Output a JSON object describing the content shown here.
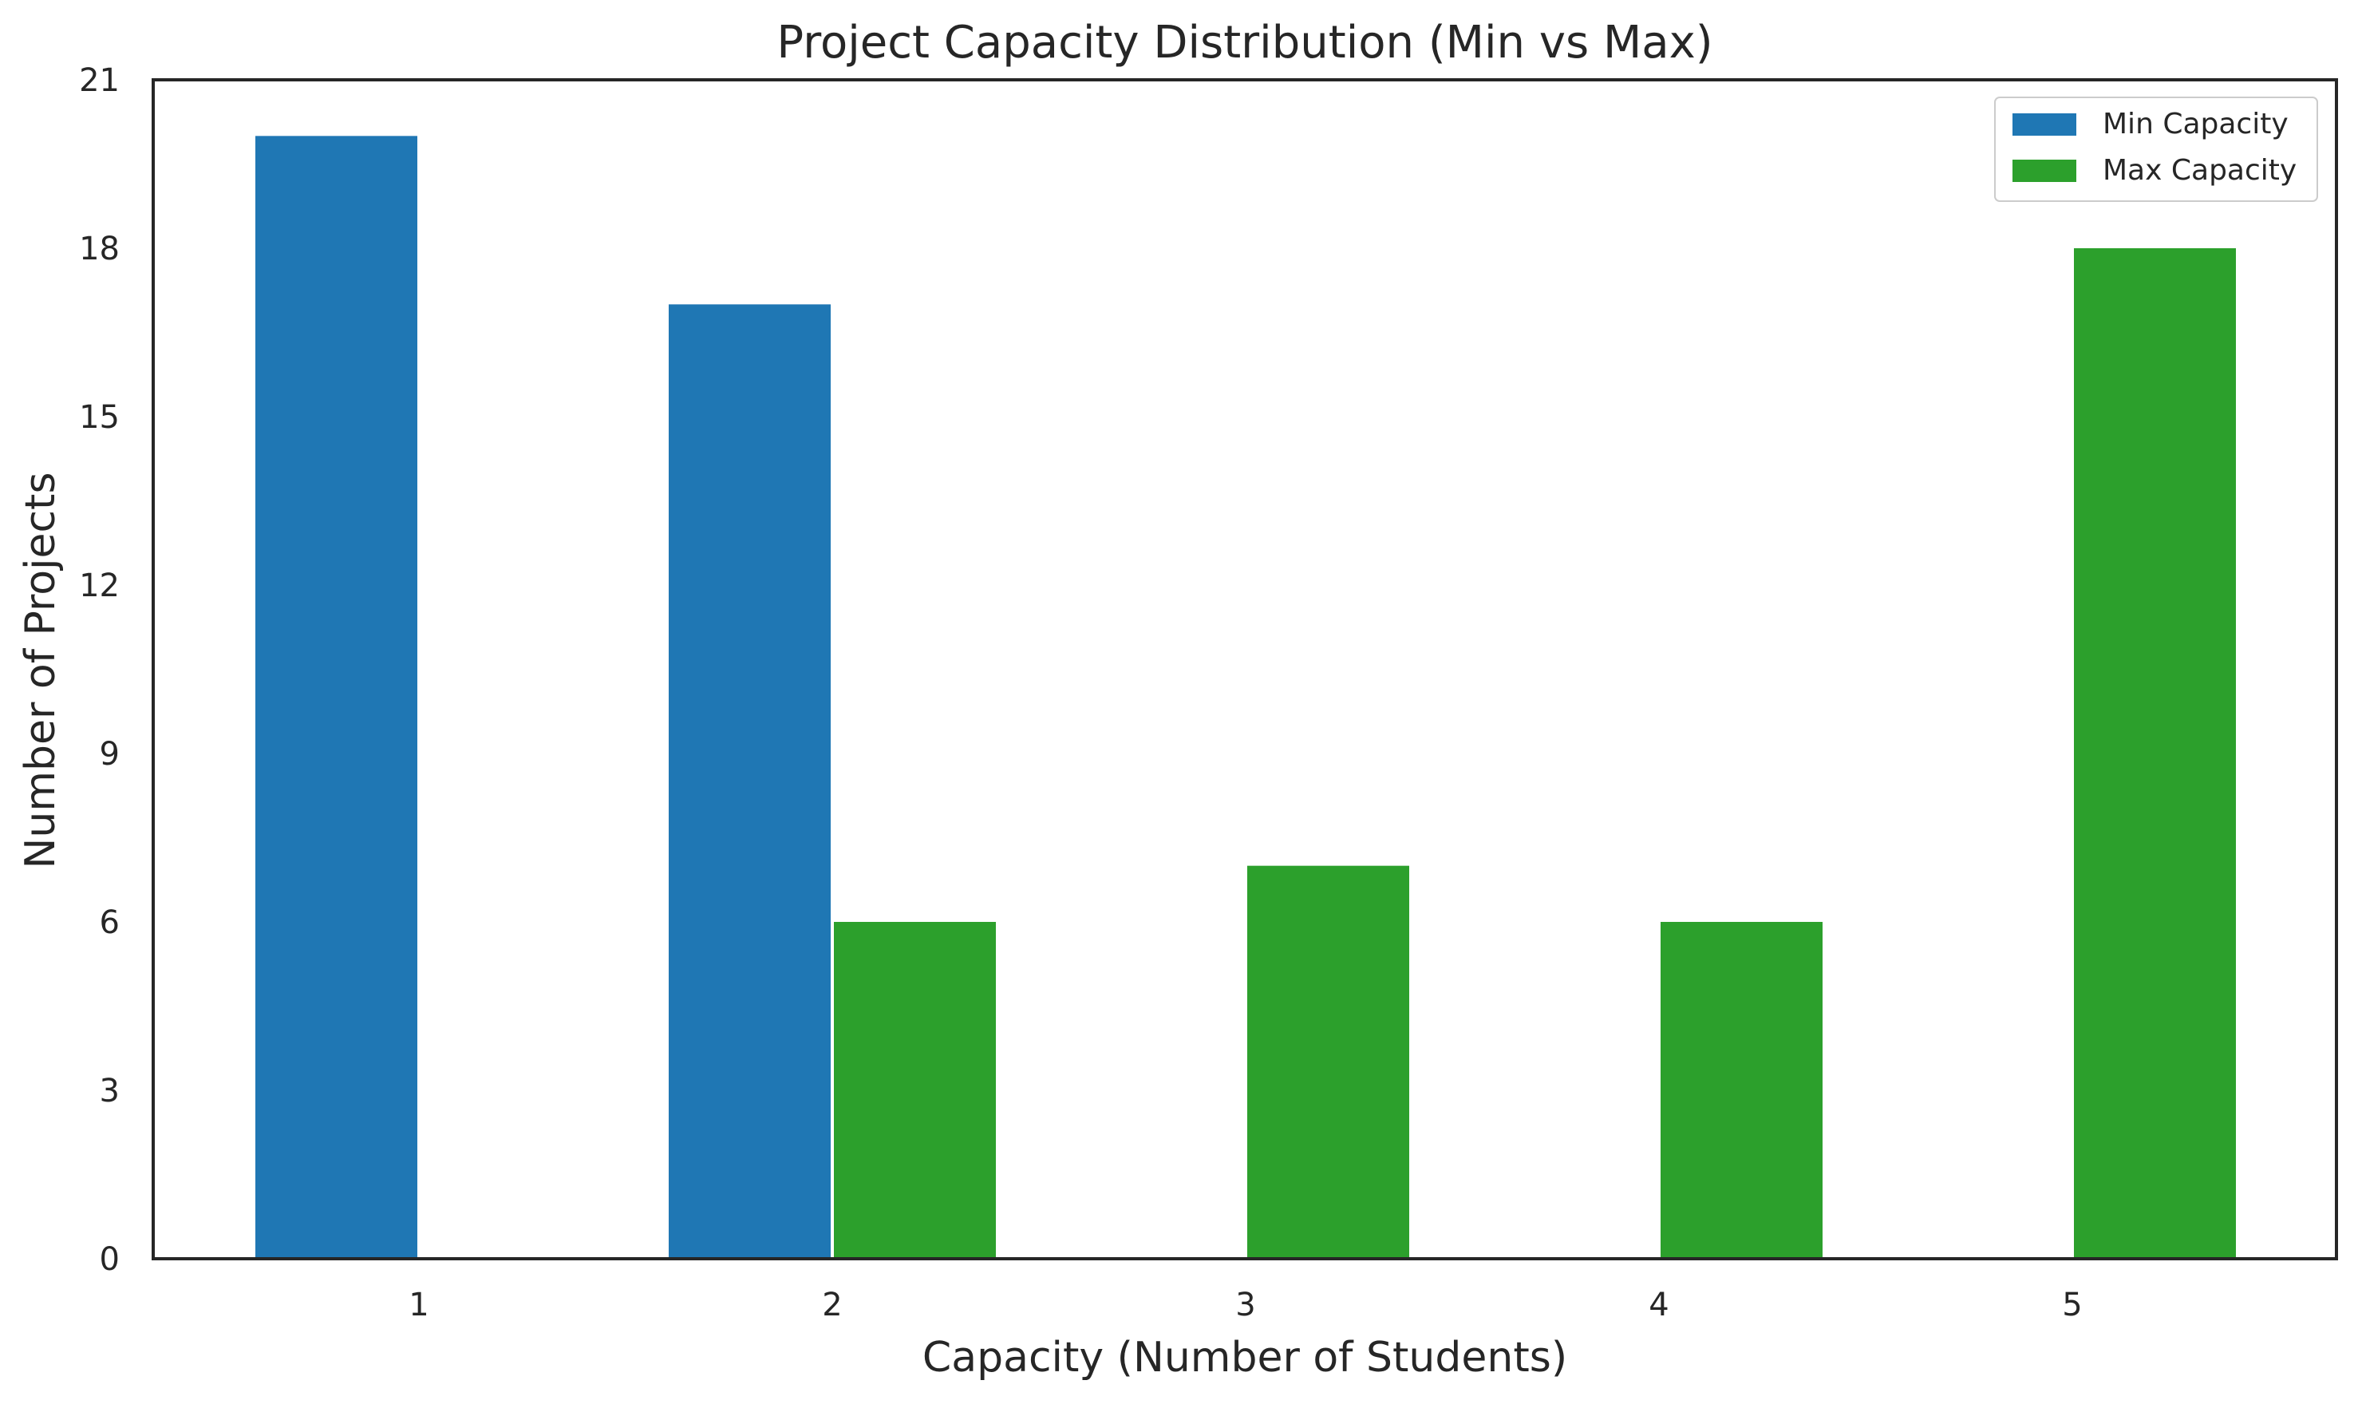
{
  "chart_data": {
    "type": "bar",
    "title": "Project Capacity Distribution (Min vs Max)",
    "xlabel": "Capacity (Number of Students)",
    "ylabel": "Number of Projects",
    "categories": [
      "1",
      "2",
      "3",
      "4",
      "5"
    ],
    "series": [
      {
        "name": "Min Capacity",
        "color": "#1f77b4",
        "values": [
          20,
          17,
          0,
          0,
          0
        ]
      },
      {
        "name": "Max Capacity",
        "color": "#2ca02c",
        "values": [
          0,
          6,
          7,
          6,
          18
        ]
      }
    ],
    "ylim": [
      0,
      21
    ],
    "yticks": [
      0,
      3,
      6,
      9,
      12,
      15,
      18,
      21
    ],
    "grid": false,
    "legend_position": "top-right"
  }
}
